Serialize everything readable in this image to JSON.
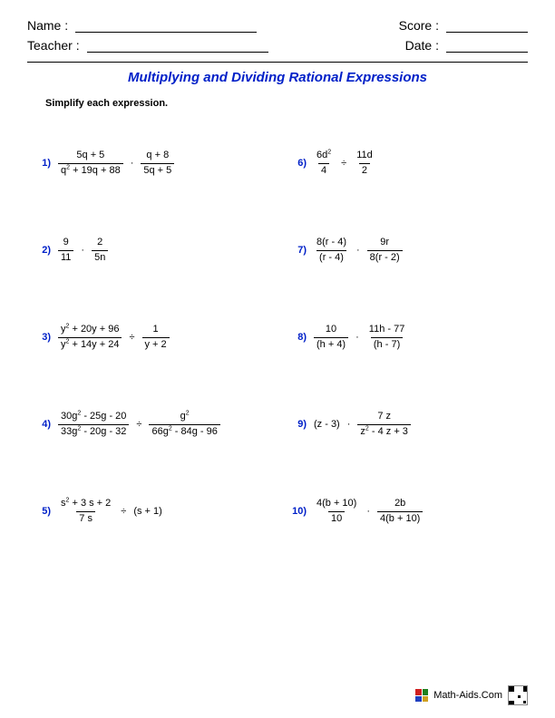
{
  "header": {
    "name_label": "Name :",
    "teacher_label": "Teacher :",
    "score_label": "Score :",
    "date_label": "Date :"
  },
  "title": {
    "text": "Multiplying and Dividing Rational Expressions",
    "color": "#0020c8"
  },
  "instruction": "Simplify each expression.",
  "colors": {
    "problem_number": "#0020c8",
    "text": "#000000",
    "background": "#ffffff"
  },
  "problems_left": [
    {
      "n": "1)",
      "a_num": "5q + 5",
      "a_den": "q² + 19q + 88",
      "op": "·",
      "b_num": "q + 8",
      "b_den": "5q + 5"
    },
    {
      "n": "2)",
      "a_num": "9",
      "a_den": "11",
      "op": "·",
      "b_num": "2",
      "b_den": "5n"
    },
    {
      "n": "3)",
      "a_num": "y² + 20y + 96",
      "a_den": "y² + 14y + 24",
      "op": "÷",
      "b_num": "1",
      "b_den": "y + 2"
    },
    {
      "n": "4)",
      "a_num": "30g² - 25g - 20",
      "a_den": "33g² - 20g - 32",
      "op": "÷",
      "b_num": "g²",
      "b_den": "66g² - 84g - 96"
    },
    {
      "n": "5)",
      "a_num": "s² + 3 s + 2",
      "a_den": "7 s",
      "op": "÷",
      "b_plain": "(s + 1)"
    }
  ],
  "problems_right": [
    {
      "n": "6)",
      "a_num": "6d²",
      "a_den": "4",
      "op": "÷",
      "b_num": "11d",
      "b_den": "2"
    },
    {
      "n": "7)",
      "a_num": "8(r - 4)",
      "a_den": "(r - 4)",
      "op": "·",
      "b_num": "9r",
      "b_den": "8(r - 2)"
    },
    {
      "n": "8)",
      "a_num": "10",
      "a_den": "(h + 4)",
      "op": "·",
      "b_num": "11h - 77",
      "b_den": "(h - 7)"
    },
    {
      "n": "9)",
      "a_plain": "(z - 3)",
      "op": "·",
      "b_num": "7 z",
      "b_den": "z² - 4 z + 3"
    },
    {
      "n": "10)",
      "a_num": "4(b + 10)",
      "a_den": "10",
      "op": "·",
      "b_num": "2b",
      "b_den": "4(b + 10)"
    }
  ],
  "footer": {
    "site": "Math-Aids.Com",
    "logo_colors": [
      "#d02020",
      "#208020",
      "#2040c0",
      "#d0a020"
    ]
  }
}
